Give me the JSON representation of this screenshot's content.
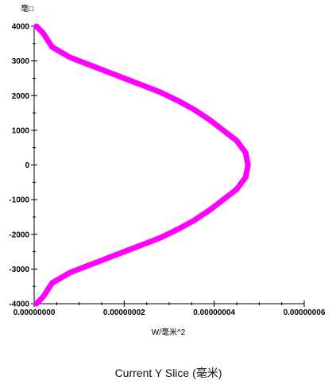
{
  "chart_data": {
    "type": "line",
    "title": "Current Y Slice (毫米)",
    "xlabel": "W/毫米^2",
    "ylabel": "毫□",
    "xlim": [
      0,
      6e-08
    ],
    "ylim": [
      -4000,
      4000
    ],
    "x_ticks": [
      0,
      2e-08,
      4e-08,
      6e-08
    ],
    "x_tick_labels": [
      "0.00000000",
      "0.00000002",
      "0.00000004",
      "0.00000006"
    ],
    "y_ticks": [
      -4000,
      -3000,
      -2000,
      -1000,
      0,
      1000,
      2000,
      3000,
      4000
    ],
    "y_tick_labels": [
      "-4000",
      "-3000",
      "-2000",
      "-1000",
      "0",
      "1000",
      "2000",
      "3000",
      "4000"
    ],
    "grid": false,
    "series": [
      {
        "color": "#ff00ff",
        "points": [
          {
            "x": 5e-10,
            "y": -4000
          },
          {
            "x": 2e-09,
            "y": -3800
          },
          {
            "x": 3e-09,
            "y": -3600
          },
          {
            "x": 4e-09,
            "y": -3400
          },
          {
            "x": 8e-09,
            "y": -3100
          },
          {
            "x": 1.2e-08,
            "y": -2900
          },
          {
            "x": 1.6e-08,
            "y": -2700
          },
          {
            "x": 2e-08,
            "y": -2500
          },
          {
            "x": 2.4e-08,
            "y": -2300
          },
          {
            "x": 2.8e-08,
            "y": -2100
          },
          {
            "x": 3.2e-08,
            "y": -1850
          },
          {
            "x": 3.55e-08,
            "y": -1600
          },
          {
            "x": 3.9e-08,
            "y": -1300
          },
          {
            "x": 4.2e-08,
            "y": -1000
          },
          {
            "x": 4.5e-08,
            "y": -700
          },
          {
            "x": 4.7e-08,
            "y": -350
          },
          {
            "x": 4.75e-08,
            "y": 0
          },
          {
            "x": 4.7e-08,
            "y": 350
          },
          {
            "x": 4.5e-08,
            "y": 700
          },
          {
            "x": 4.2e-08,
            "y": 1000
          },
          {
            "x": 3.9e-08,
            "y": 1300
          },
          {
            "x": 3.55e-08,
            "y": 1600
          },
          {
            "x": 3.2e-08,
            "y": 1850
          },
          {
            "x": 2.8e-08,
            "y": 2100
          },
          {
            "x": 2.4e-08,
            "y": 2300
          },
          {
            "x": 2e-08,
            "y": 2500
          },
          {
            "x": 1.6e-08,
            "y": 2700
          },
          {
            "x": 1.2e-08,
            "y": 2900
          },
          {
            "x": 8e-09,
            "y": 3100
          },
          {
            "x": 4e-09,
            "y": 3400
          },
          {
            "x": 3e-09,
            "y": 3600
          },
          {
            "x": 2e-09,
            "y": 3800
          },
          {
            "x": 5e-10,
            "y": 4000
          }
        ]
      }
    ]
  }
}
